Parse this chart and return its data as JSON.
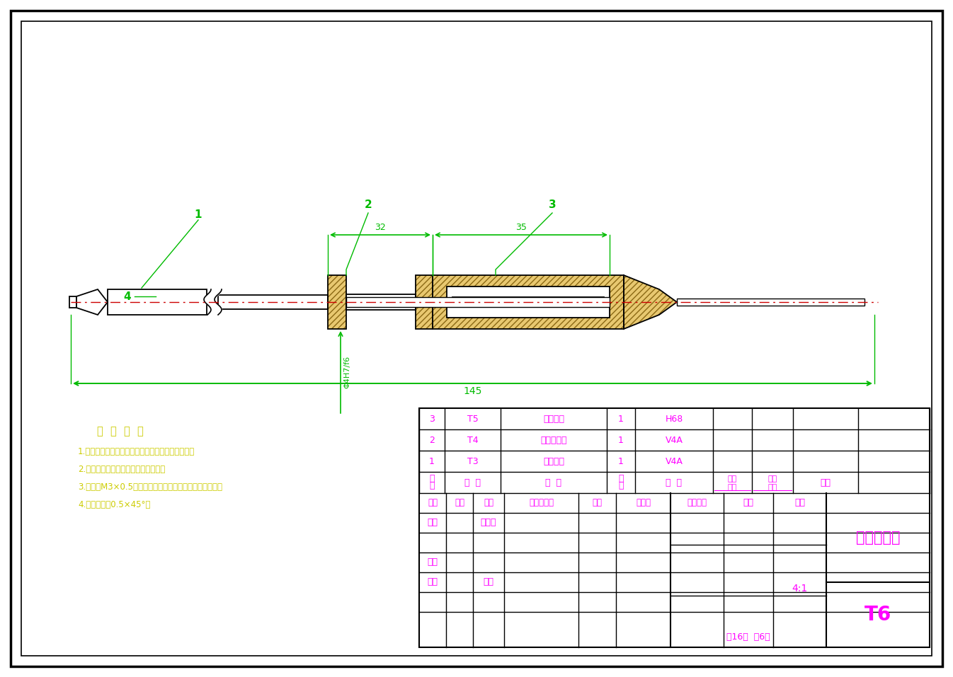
{
  "bg_color": "#ffffff",
  "border_color": "#000000",
  "line_color": "#00bb00",
  "dim_color": "#00bb00",
  "center_line_color": "#cc0000",
  "hatch_facecolor": "#e8c870",
  "hatch_edgecolor": "#8B6914",
  "text_magenta": "#ff00ff",
  "text_yellow": "#cccc00",
  "title": "枪针装配图",
  "drawing_no": "T6",
  "scale_label": "比例",
  "scale_value": "4:1",
  "weight_label": "重量",
  "stage_label": "阶段标记",
  "sheet_info": "共16张  第6张",
  "total_length_dim": "145",
  "mid_dim1": "32",
  "mid_dim2": "35",
  "fit_dim": "Φ4H7/f6",
  "part_labels": [
    "1",
    "2",
    "3"
  ],
  "part4_label": "4",
  "notes_title": "技  术  要  求",
  "notes": [
    "1.枪针装配前须用汽油清洗三个零件，并涂油脂销；",
    "2.枪针为精密件，装配时要小心对待；",
    "3.螺纹为M3×0.5，装配时选到底，以保证枪针的精足性；",
    "4.未注倒角为0.5×45°。"
  ],
  "bom_rows": [
    {
      "seq": "3",
      "code": "T5",
      "name": "枪针后件",
      "qty": "1",
      "material": "H68"
    },
    {
      "seq": "2",
      "code": "T4",
      "name": "枪针中间件",
      "qty": "1",
      "material": "V4A"
    },
    {
      "seq": "1",
      "code": "T3",
      "name": "枪针前件",
      "qty": "1",
      "material": "V4A"
    }
  ],
  "revision_labels": [
    "标记",
    "处数",
    "分区",
    "更改文件号",
    "签名",
    "年月日"
  ],
  "left_col_labels": [
    "设计",
    "审核",
    "工艺"
  ],
  "mid_col_labels": [
    "标准化",
    "批准"
  ],
  "bom_col_header": [
    "序\n号",
    "代  号",
    "名  称",
    "数\n量",
    "材  料",
    "单件\n重量",
    "总计\n重量",
    "备注"
  ]
}
